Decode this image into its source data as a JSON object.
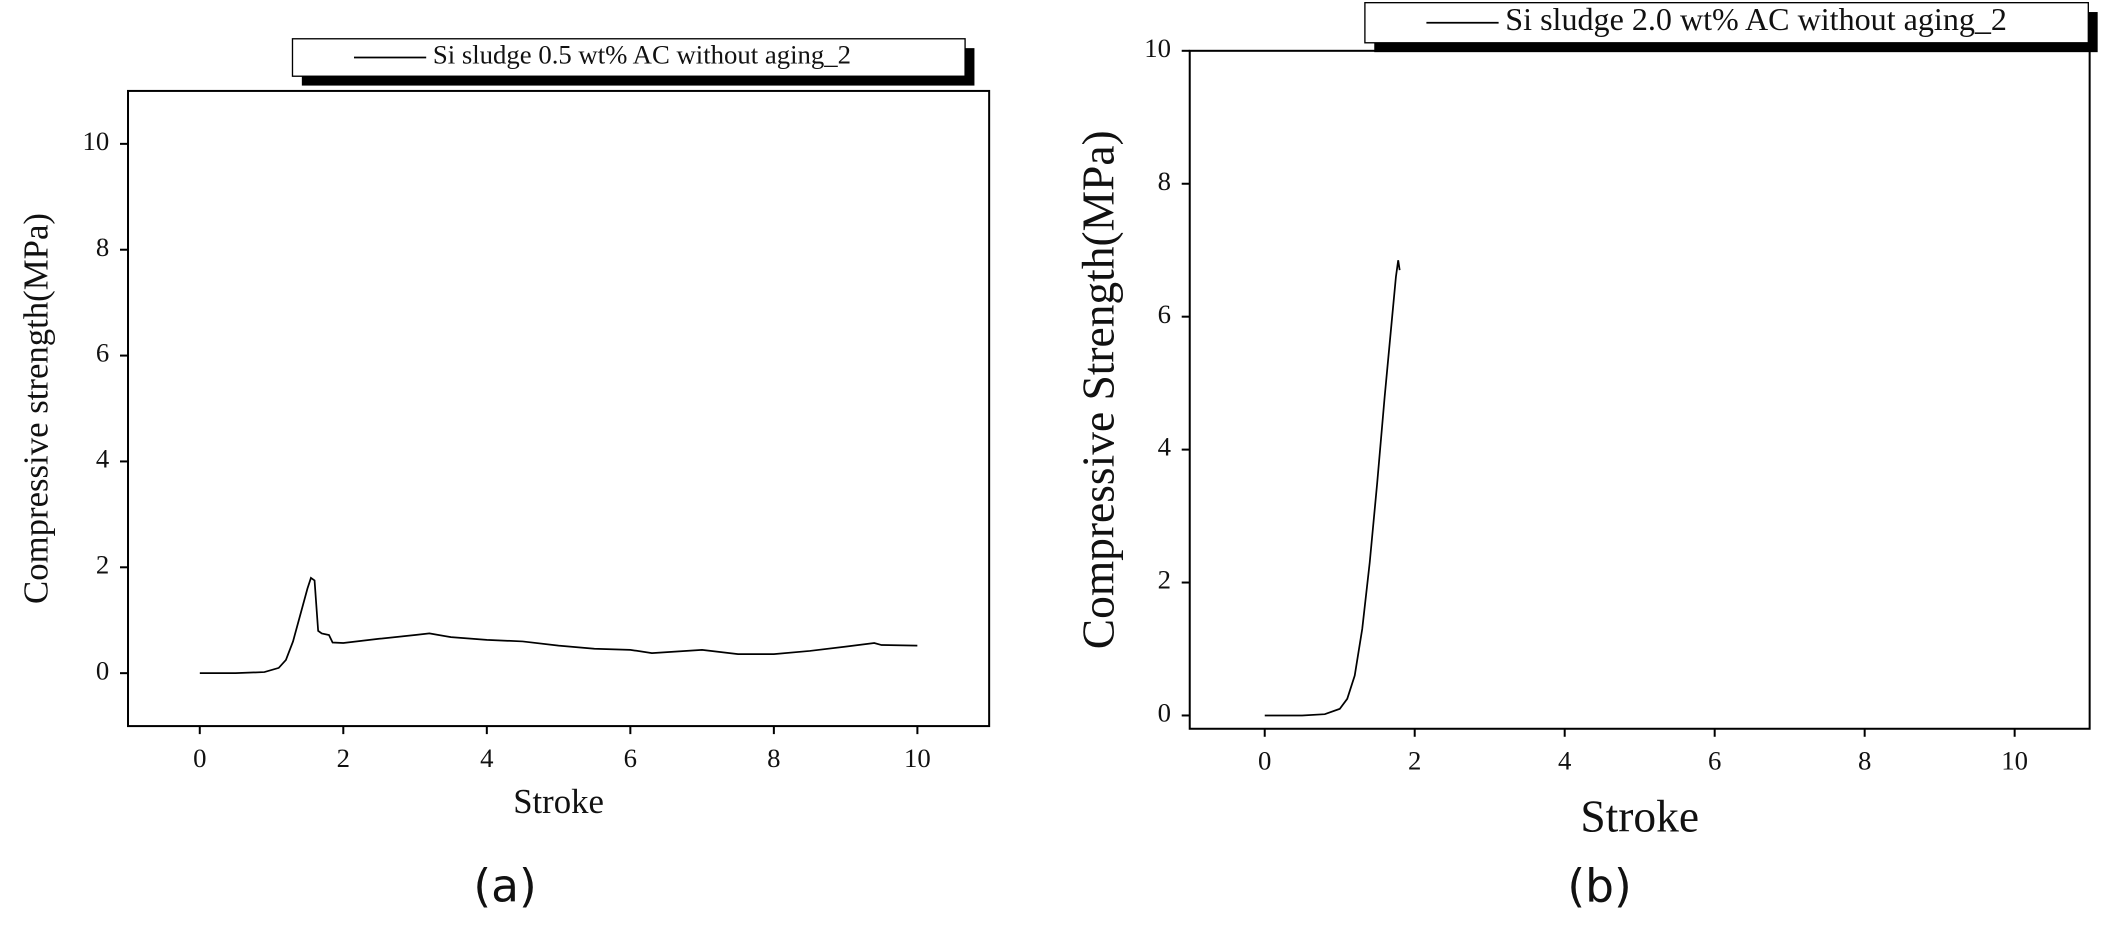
{
  "chart_data": [
    {
      "type": "line",
      "xlabel": "Stroke",
      "ylabel": "Compressive strength(MPa)",
      "caption": "(a)",
      "xlim": [
        -1,
        11
      ],
      "ylim": [
        -1,
        11
      ],
      "xticks": [
        0,
        2,
        4,
        6,
        8,
        10
      ],
      "yticks": [
        0,
        2,
        4,
        6,
        8,
        10
      ],
      "legend": "top",
      "series": [
        {
          "name": "Si sludge 0.5 wt% AC without aging_2",
          "color": "#000000",
          "x": [
            0,
            0.5,
            0.9,
            1.1,
            1.2,
            1.3,
            1.4,
            1.5,
            1.55,
            1.6,
            1.65,
            1.7,
            1.8,
            1.85,
            2,
            2.5,
            3,
            3.2,
            3.5,
            4,
            4.5,
            5,
            5.5,
            6,
            6.3,
            7,
            7.5,
            8,
            8.5,
            9,
            9.4,
            9.5,
            10
          ],
          "values": [
            0,
            0,
            0.02,
            0.1,
            0.25,
            0.6,
            1.1,
            1.6,
            1.8,
            1.75,
            0.8,
            0.75,
            0.72,
            0.58,
            0.57,
            0.65,
            0.72,
            0.75,
            0.68,
            0.63,
            0.6,
            0.52,
            0.46,
            0.44,
            0.38,
            0.44,
            0.36,
            0.36,
            0.42,
            0.5,
            0.57,
            0.53,
            0.52
          ]
        }
      ]
    },
    {
      "type": "line",
      "xlabel": "Stroke",
      "ylabel": "Compressive Strength(MPa)",
      "caption": "(b)",
      "xlim": [
        -1,
        11
      ],
      "ylim": [
        -0.2,
        10
      ],
      "xticks": [
        0,
        2,
        4,
        6,
        8,
        10
      ],
      "yticks": [
        0,
        2,
        4,
        6,
        8,
        10
      ],
      "legend": "top",
      "series": [
        {
          "name": "Si sludge 2.0 wt% AC without aging_2",
          "color": "#000000",
          "x": [
            0,
            0.5,
            0.8,
            1.0,
            1.1,
            1.2,
            1.3,
            1.4,
            1.5,
            1.6,
            1.7,
            1.75,
            1.78,
            1.8
          ],
          "values": [
            0,
            0,
            0.02,
            0.1,
            0.25,
            0.6,
            1.3,
            2.3,
            3.5,
            4.8,
            6.0,
            6.6,
            6.85,
            6.7
          ]
        }
      ]
    }
  ]
}
